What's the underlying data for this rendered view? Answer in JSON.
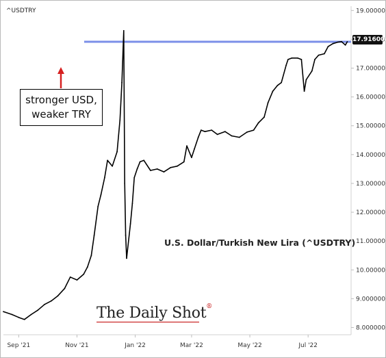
{
  "ticker": "^USDTRY",
  "subtitle": "U.S. Dollar/Turkish New Lira (^USDTRY)",
  "annotation": {
    "line1": "stronger USD,",
    "line2": "weaker TRY"
  },
  "watermark": "The Daily Shot",
  "watermark_mark": "®",
  "colors": {
    "price": "#000000",
    "reference_line": "#7b8fe8",
    "arrow": "#d62020",
    "watermark_mark": "#c00000"
  },
  "chart_data": {
    "type": "line",
    "title": "U.S. Dollar/Turkish New Lira (^USDTRY)",
    "series": [
      {
        "name": "^USDTRY",
        "points": [
          [
            "2021-08-16",
            8.55
          ],
          [
            "2021-08-25",
            8.45
          ],
          [
            "2021-09-01",
            8.35
          ],
          [
            "2021-09-07",
            8.28
          ],
          [
            "2021-09-14",
            8.45
          ],
          [
            "2021-09-21",
            8.6
          ],
          [
            "2021-09-28",
            8.8
          ],
          [
            "2021-10-05",
            8.92
          ],
          [
            "2021-10-12",
            9.1
          ],
          [
            "2021-10-19",
            9.35
          ],
          [
            "2021-10-25",
            9.75
          ],
          [
            "2021-11-01",
            9.65
          ],
          [
            "2021-11-08",
            9.85
          ],
          [
            "2021-11-12",
            10.1
          ],
          [
            "2021-11-16",
            10.5
          ],
          [
            "2021-11-19",
            11.2
          ],
          [
            "2021-11-23",
            12.2
          ],
          [
            "2021-11-26",
            12.6
          ],
          [
            "2021-11-30",
            13.2
          ],
          [
            "2021-12-03",
            13.8
          ],
          [
            "2021-12-08",
            13.6
          ],
          [
            "2021-12-13",
            14.1
          ],
          [
            "2021-12-16",
            15.2
          ],
          [
            "2021-12-18",
            16.5
          ],
          [
            "2021-12-20",
            18.3
          ],
          [
            "2021-12-21",
            13.0
          ],
          [
            "2021-12-22",
            11.2
          ],
          [
            "2021-12-23",
            10.4
          ],
          [
            "2021-12-27",
            11.6
          ],
          [
            "2021-12-29",
            12.3
          ],
          [
            "2021-12-31",
            13.2
          ],
          [
            "2022-01-03",
            13.5
          ],
          [
            "2022-01-06",
            13.75
          ],
          [
            "2022-01-10",
            13.8
          ],
          [
            "2022-01-17",
            13.45
          ],
          [
            "2022-01-24",
            13.5
          ],
          [
            "2022-01-31",
            13.4
          ],
          [
            "2022-02-07",
            13.55
          ],
          [
            "2022-02-14",
            13.6
          ],
          [
            "2022-02-21",
            13.75
          ],
          [
            "2022-02-24",
            14.3
          ],
          [
            "2022-03-01",
            13.9
          ],
          [
            "2022-03-04",
            14.2
          ],
          [
            "2022-03-08",
            14.6
          ],
          [
            "2022-03-11",
            14.85
          ],
          [
            "2022-03-15",
            14.8
          ],
          [
            "2022-03-22",
            14.85
          ],
          [
            "2022-03-28",
            14.7
          ],
          [
            "2022-04-05",
            14.8
          ],
          [
            "2022-04-12",
            14.65
          ],
          [
            "2022-04-20",
            14.6
          ],
          [
            "2022-04-28",
            14.78
          ],
          [
            "2022-05-05",
            14.85
          ],
          [
            "2022-05-10",
            15.1
          ],
          [
            "2022-05-16",
            15.3
          ],
          [
            "2022-05-20",
            15.8
          ],
          [
            "2022-05-25",
            16.2
          ],
          [
            "2022-05-30",
            16.4
          ],
          [
            "2022-06-03",
            16.5
          ],
          [
            "2022-06-08",
            17.1
          ],
          [
            "2022-06-10",
            17.3
          ],
          [
            "2022-06-14",
            17.35
          ],
          [
            "2022-06-20",
            17.35
          ],
          [
            "2022-06-24",
            17.3
          ],
          [
            "2022-06-27",
            16.2
          ],
          [
            "2022-06-29",
            16.6
          ],
          [
            "2022-07-05",
            16.9
          ],
          [
            "2022-07-08",
            17.3
          ],
          [
            "2022-07-12",
            17.45
          ],
          [
            "2022-07-18",
            17.5
          ],
          [
            "2022-07-22",
            17.75
          ],
          [
            "2022-07-27",
            17.85
          ],
          [
            "2022-08-01",
            17.9
          ],
          [
            "2022-08-05",
            17.92
          ],
          [
            "2022-08-09",
            17.8
          ],
          [
            "2022-08-11",
            17.916
          ]
        ]
      }
    ],
    "reference_line": 17.916,
    "last_value_label": "17.916004",
    "y_ticks": [
      "8.000000",
      "9.000000",
      "10.000000",
      "11.000000",
      "12.000000",
      "13.000000",
      "14.000000",
      "15.000000",
      "16.000000",
      "17.000000",
      "18.000000",
      "19.000000"
    ],
    "x_ticks": [
      {
        "date": "2021-09-01",
        "label": "Sep '21"
      },
      {
        "date": "2021-11-01",
        "label": "Nov '21"
      },
      {
        "date": "2022-01-01",
        "label": "Jan '22"
      },
      {
        "date": "2022-03-01",
        "label": "Mar '22"
      },
      {
        "date": "2022-05-01",
        "label": "May '22"
      },
      {
        "date": "2022-07-01",
        "label": "Jul '22"
      }
    ],
    "xlim": [
      "2021-08-16",
      "2022-08-15"
    ],
    "ylim": [
      7.75,
      19.15
    ],
    "grid": false,
    "axis_side": "right"
  }
}
